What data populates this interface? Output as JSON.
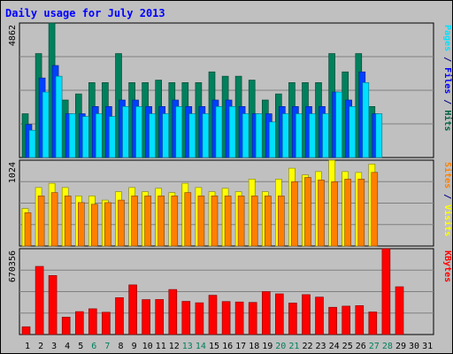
{
  "chart_data": {
    "type": "bar",
    "title": "Daily usage for July 2013",
    "categories": [
      "1",
      "2",
      "3",
      "4",
      "5",
      "6",
      "7",
      "8",
      "9",
      "10",
      "11",
      "12",
      "13",
      "14",
      "15",
      "16",
      "17",
      "18",
      "19",
      "20",
      "21",
      "22",
      "23",
      "24",
      "25",
      "26",
      "27",
      "28",
      "29",
      "30",
      "31"
    ],
    "weekend_days": [
      "6",
      "7",
      "13",
      "14",
      "20",
      "21",
      "27",
      "28"
    ],
    "panels": [
      {
        "name": "top",
        "max_label": "4862",
        "ymax": 4862,
        "grid": [
          1215.5,
          2431,
          3646.5
        ],
        "right_labels": [
          {
            "text": "Pages",
            "color": "#00E0FF"
          },
          {
            "text": " / ",
            "color": "#000080"
          },
          {
            "text": "Files",
            "color": "#0000FF"
          },
          {
            "text": " / ",
            "color": "#000080"
          },
          {
            "text": "Hits",
            "color": "#006040"
          }
        ],
        "series": [
          {
            "name": "Hits",
            "color": "#00805C",
            "values": [
              1583,
              3759,
              4862,
              2079,
              2300,
              2709,
              2709,
              3759,
              2709,
              2709,
              2798,
              2709,
              2709,
              2709,
              3095,
              2941,
              2941,
              2798,
              2079,
              2300,
              2709,
              2709,
              2709,
              3759,
              3095,
              3759,
              1845
            ]
          },
          {
            "name": "Files",
            "color": "#0040FF",
            "values": [
              1196,
              2875,
              3326,
              1583,
              1583,
              1845,
              1845,
              2079,
              2079,
              1845,
              1845,
              2079,
              1845,
              1845,
              2079,
              2079,
              1845,
              1583,
              1583,
              1845,
              1845,
              1845,
              1845,
              2366,
              2079,
              3095,
              1583
            ]
          },
          {
            "name": "Pages",
            "color": "#00E0FF",
            "values": [
              985,
              2366,
              2941,
              1583,
              1483,
              1583,
              1483,
              1845,
              1845,
              1583,
              1583,
              1845,
              1583,
              1583,
              1845,
              1845,
              1583,
              1583,
              1285,
              1583,
              1583,
              1583,
              1583,
              2366,
              1845,
              2709,
              1583
            ]
          }
        ]
      },
      {
        "name": "mid",
        "max_label": "1024",
        "ymax": 1024,
        "grid": [
          256,
          512,
          768
        ],
        "right_labels": [
          {
            "text": "Sites",
            "color": "#FF8000"
          },
          {
            "text": " / ",
            "color": "#000080"
          },
          {
            "text": "Visits",
            "color": "#FFFF00"
          }
        ],
        "series": [
          {
            "name": "Visits",
            "color": "#FFFF00",
            "values": [
              448,
              698,
              748,
              698,
              598,
              598,
              548,
              648,
              698,
              648,
              688,
              638,
              748,
              698,
              648,
              688,
              648,
              798,
              648,
              798,
              928,
              848,
              888,
              1024,
              888,
              877,
              978
            ]
          },
          {
            "name": "Sites",
            "color": "#FF8000",
            "values": [
              398,
              598,
              638,
              598,
              518,
              498,
              518,
              548,
              598,
              598,
              598,
              598,
              638,
              598,
              598,
              598,
              598,
              598,
              598,
              598,
              768,
              818,
              788,
              768,
              798,
              798,
              878
            ]
          }
        ]
      },
      {
        "name": "bottom",
        "max_label": "670356",
        "ymax": 670356,
        "grid": [
          167589,
          335178,
          502767
        ],
        "right_labels": [
          {
            "text": "KBytes",
            "color": "#FF0000"
          }
        ],
        "series": [
          {
            "name": "KBytes",
            "color": "#FF0000",
            "values": [
              60500,
              532000,
              461000,
              136000,
              179000,
              201000,
              174000,
              288000,
              388000,
              273000,
              274000,
              352000,
              259000,
              248000,
              307000,
              258000,
              254000,
              251000,
              335000,
              318000,
              246000,
              312000,
              292000,
              213000,
              222000,
              226000,
              176000,
              670356,
              373000
            ]
          }
        ]
      }
    ]
  }
}
